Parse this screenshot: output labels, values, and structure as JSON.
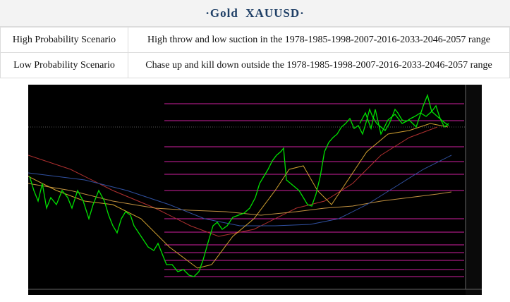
{
  "header": {
    "title": "·Gold  XAUUSD·"
  },
  "table": {
    "rows": [
      [
        "High Probability Scenario",
        "High throw and low suction in the 1978-1985-1998-2007-2016-2033-2046-2057 range"
      ],
      [
        "Low Probability Scenario",
        "Chase up and kill down outside the 1978-1985-1998-2007-2016-2033-2046-2057 range"
      ]
    ]
  }
}
